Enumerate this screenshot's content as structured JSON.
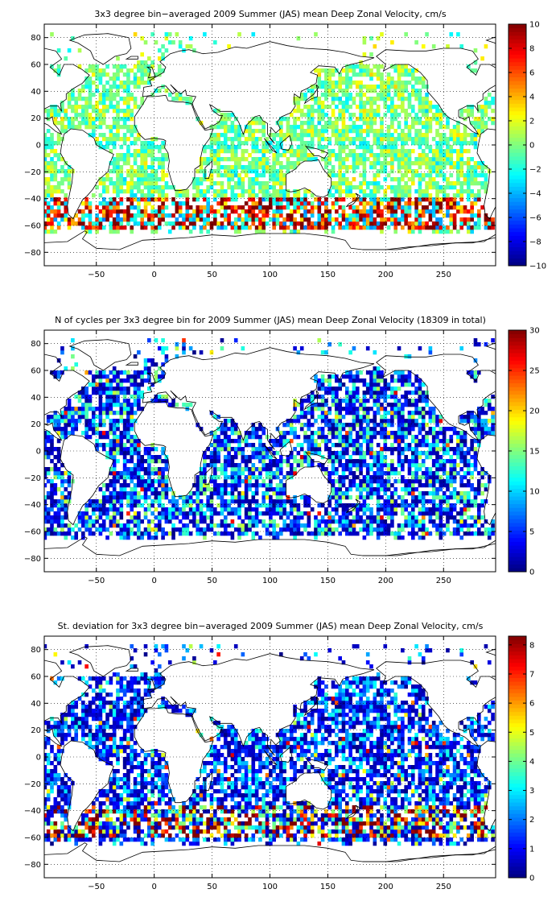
{
  "figure": {
    "layout": "three vertically stacked world maps, each with colorbar at right"
  },
  "chart_data": [
    {
      "type": "heatmap",
      "title": "3x3 degree bin−averaged 2009 Summer (JAS) mean Deep Zonal Velocity, cm/s",
      "xlabel": "",
      "ylabel": "",
      "xlim": [
        -95,
        295
      ],
      "ylim": [
        -90,
        90
      ],
      "xticks": [
        -50,
        0,
        50,
        100,
        150,
        200,
        250
      ],
      "yticks": [
        -80,
        -60,
        -40,
        -20,
        0,
        20,
        40,
        60,
        80
      ],
      "grid": true,
      "grid_style": "dotted",
      "bin_size_deg": 3,
      "colormap": "jet",
      "color_range": [
        -10,
        10
      ],
      "colorbar_ticks": [
        -10,
        -8,
        -6,
        -4,
        -2,
        0,
        2,
        4,
        6,
        8,
        10
      ],
      "colorbar_position": "right",
      "seed": 11,
      "value_model": "diverging"
    },
    {
      "type": "heatmap",
      "title": "N of cycles per 3x3 degree bin for 2009 Summer (JAS) mean Deep Zonal Velocity (18309 in total)",
      "xlabel": "",
      "ylabel": "",
      "xlim": [
        -95,
        295
      ],
      "ylim": [
        -90,
        90
      ],
      "xticks": [
        -50,
        0,
        50,
        100,
        150,
        200,
        250
      ],
      "yticks": [
        -80,
        -60,
        -40,
        -20,
        0,
        20,
        40,
        60,
        80
      ],
      "grid": true,
      "grid_style": "dotted",
      "bin_size_deg": 3,
      "colormap": "jet",
      "color_range": [
        0,
        30
      ],
      "colorbar_ticks": [
        0,
        5,
        10,
        15,
        20,
        25,
        30
      ],
      "colorbar_position": "right",
      "total_cycles": 18309,
      "seed": 23,
      "value_model": "count"
    },
    {
      "type": "heatmap",
      "title": "St. deviation for 3x3 degree bin−averaged 2009 Summer (JAS) mean Deep Zonal Velocity, cm/s",
      "xlabel": "",
      "ylabel": "",
      "xlim": [
        -95,
        295
      ],
      "ylim": [
        -90,
        90
      ],
      "xticks": [
        -50,
        0,
        50,
        100,
        150,
        200,
        250
      ],
      "yticks": [
        -80,
        -60,
        -40,
        -20,
        0,
        20,
        40,
        60,
        80
      ],
      "grid": true,
      "grid_style": "dotted",
      "bin_size_deg": 3,
      "colormap": "jet",
      "color_range": [
        0,
        8.3
      ],
      "colorbar_ticks": [
        0,
        1,
        2,
        3,
        4,
        5,
        6,
        7,
        8
      ],
      "colorbar_position": "right",
      "seed": 37,
      "value_model": "stdev"
    }
  ]
}
